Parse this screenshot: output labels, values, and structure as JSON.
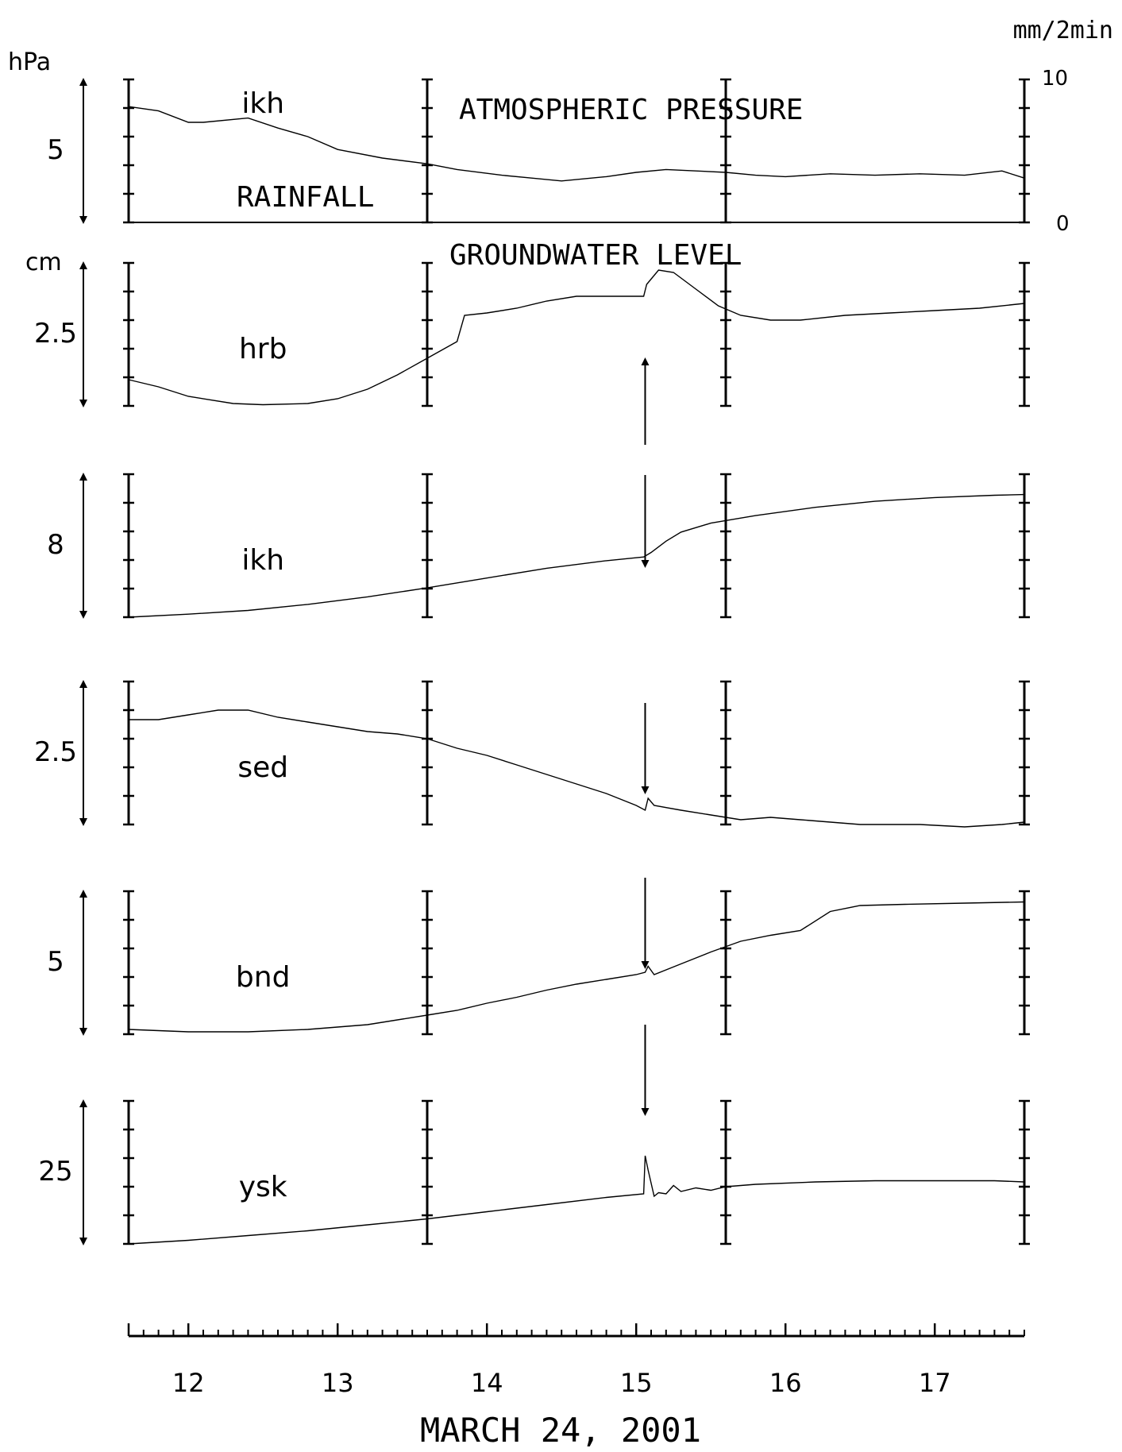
{
  "chart_data": {
    "type": "line",
    "xlabel": "MARCH 24, 2001",
    "x_ticks": [
      "12",
      "13",
      "14",
      "15",
      "16",
      "17"
    ],
    "x_range": [
      11.6,
      17.6
    ],
    "annotations": {
      "pressure": "ATMOSPHERIC PRESSURE",
      "rain": "RAINFALL",
      "gw": "GROUNDWATER LEVEL",
      "event_time": 15.06
    },
    "left_units": {
      "top": "hPa",
      "groundwater": "cm"
    },
    "right_axis": {
      "unit": "mm/2min",
      "max": "10",
      "min": "0"
    },
    "panels": [
      {
        "name": "ikh",
        "scale_label": "5",
        "y_range": [
          0,
          10
        ],
        "x": [
          11.6,
          11.8,
          12.0,
          12.1,
          12.4,
          12.6,
          12.8,
          13.0,
          13.3,
          13.6,
          13.8,
          14.1,
          14.3,
          14.5,
          14.8,
          15.0,
          15.2,
          15.4,
          15.6,
          15.8,
          16.0,
          16.3,
          16.6,
          16.9,
          17.2,
          17.45,
          17.6
        ],
        "y": [
          8.1,
          7.8,
          7.0,
          7.0,
          7.3,
          6.6,
          6.0,
          5.1,
          4.5,
          4.1,
          3.7,
          3.3,
          3.1,
          2.9,
          3.2,
          3.5,
          3.7,
          3.6,
          3.5,
          3.3,
          3.2,
          3.4,
          3.3,
          3.4,
          3.3,
          3.6,
          3.1
        ],
        "rainfall_values": []
      },
      {
        "name": "hrb",
        "scale_label": "2.5",
        "y_range": [
          0,
          6
        ],
        "x": [
          11.6,
          11.8,
          12.0,
          12.3,
          12.5,
          12.8,
          13.0,
          13.2,
          13.4,
          13.6,
          13.8,
          13.85,
          14.0,
          14.2,
          14.4,
          14.6,
          14.8,
          15.05,
          15.07,
          15.15,
          15.25,
          15.4,
          15.55,
          15.7,
          15.9,
          16.1,
          16.4,
          16.7,
          17.0,
          17.3,
          17.6
        ],
        "y": [
          1.1,
          0.8,
          0.4,
          0.1,
          0.05,
          0.1,
          0.3,
          0.7,
          1.3,
          2.0,
          2.7,
          3.8,
          3.9,
          4.1,
          4.4,
          4.6,
          4.6,
          4.6,
          5.1,
          5.7,
          5.6,
          4.9,
          4.2,
          3.8,
          3.6,
          3.6,
          3.8,
          3.9,
          4.0,
          4.1,
          4.3
        ]
      },
      {
        "name": "ikh",
        "scale_label": "8",
        "y_range": [
          0,
          19
        ],
        "x": [
          11.6,
          12.0,
          12.4,
          12.8,
          13.2,
          13.6,
          14.0,
          14.4,
          14.8,
          15.05,
          15.1,
          15.2,
          15.3,
          15.5,
          15.8,
          16.2,
          16.6,
          17.0,
          17.4,
          17.6
        ],
        "y": [
          0.0,
          0.4,
          0.9,
          1.7,
          2.7,
          3.9,
          5.2,
          6.5,
          7.5,
          8.0,
          8.6,
          10.1,
          11.3,
          12.5,
          13.5,
          14.6,
          15.4,
          15.9,
          16.2,
          16.3
        ]
      },
      {
        "name": "sed",
        "scale_label": "2.5",
        "y_range": [
          0,
          6
        ],
        "x": [
          11.6,
          11.8,
          12.0,
          12.2,
          12.4,
          12.6,
          12.8,
          13.0,
          13.2,
          13.4,
          13.6,
          13.8,
          14.0,
          14.2,
          14.4,
          14.6,
          14.8,
          15.0,
          15.06,
          15.08,
          15.12,
          15.3,
          15.5,
          15.7,
          15.9,
          16.1,
          16.5,
          16.9,
          17.2,
          17.45,
          17.6
        ],
        "y": [
          4.4,
          4.4,
          4.6,
          4.8,
          4.8,
          4.5,
          4.3,
          4.1,
          3.9,
          3.8,
          3.6,
          3.2,
          2.9,
          2.5,
          2.1,
          1.7,
          1.3,
          0.8,
          0.6,
          1.1,
          0.8,
          0.6,
          0.4,
          0.2,
          0.3,
          0.2,
          0.0,
          0.0,
          -0.1,
          0.0,
          0.1
        ]
      },
      {
        "name": "bnd",
        "scale_label": "5",
        "y_range": [
          0,
          12
        ],
        "x": [
          11.6,
          11.8,
          12.0,
          12.4,
          12.8,
          13.2,
          13.6,
          13.8,
          14.0,
          14.2,
          14.4,
          14.6,
          14.8,
          15.0,
          15.06,
          15.08,
          15.12,
          15.3,
          15.5,
          15.7,
          15.9,
          16.1,
          16.3,
          16.5,
          16.8,
          17.2,
          17.6
        ],
        "y": [
          0.4,
          0.3,
          0.2,
          0.2,
          0.4,
          0.8,
          1.6,
          2.0,
          2.6,
          3.1,
          3.7,
          4.2,
          4.6,
          5.0,
          5.2,
          5.7,
          5.0,
          5.9,
          6.9,
          7.8,
          8.3,
          8.7,
          10.3,
          10.8,
          10.9,
          11.0,
          11.1
        ]
      },
      {
        "name": "ysk",
        "scale_label": "25",
        "y_range": [
          0,
          60
        ],
        "x": [
          11.6,
          12.0,
          12.4,
          12.8,
          13.2,
          13.6,
          14.0,
          14.4,
          14.8,
          15.05,
          15.06,
          15.08,
          15.12,
          15.15,
          15.2,
          15.25,
          15.3,
          15.4,
          15.5,
          15.6,
          15.8,
          16.2,
          16.6,
          17.0,
          17.4,
          17.6
        ],
        "y": [
          0.0,
          1.5,
          3.5,
          5.5,
          8.0,
          10.5,
          13.5,
          16.5,
          19.5,
          21.0,
          37.0,
          31.0,
          20.0,
          21.5,
          21.0,
          24.5,
          22.0,
          23.5,
          22.5,
          24.0,
          25.0,
          26.0,
          26.5,
          26.5,
          26.5,
          26.0
        ]
      }
    ],
    "event_arrow_panels": [
      1,
      2,
      3,
      4,
      5
    ]
  }
}
